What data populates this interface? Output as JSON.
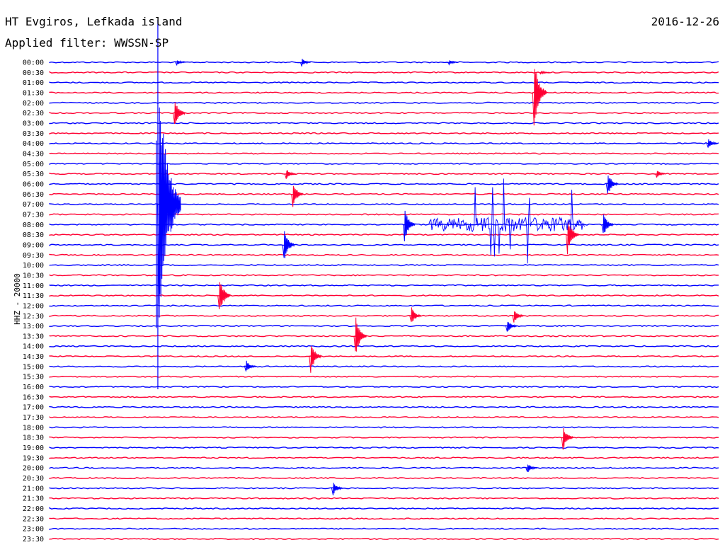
{
  "header": {
    "station": "HT Evgiros, Lefkada island",
    "date": "2016-12-26",
    "filter": "Applied filter: WWSSN-SP",
    "channel": "HHZ - 20000"
  },
  "colors": {
    "even_trace": "#0000ff",
    "odd_trace": "#ff0033",
    "background": "#ffffff"
  },
  "chart_data": {
    "type": "line",
    "title": "HT Evgiros, Lefkada island",
    "subtitle": "Applied filter: WWSSN-SP",
    "ylabel": "HHZ - 20000",
    "date": "2016-12-26",
    "x_range_minutes": [
      0,
      30
    ],
    "rows": [
      "00:00",
      "00:30",
      "01:00",
      "01:30",
      "02:00",
      "02:30",
      "03:00",
      "03:30",
      "04:00",
      "04:30",
      "05:00",
      "05:30",
      "06:00",
      "06:30",
      "07:00",
      "07:30",
      "08:00",
      "08:30",
      "09:00",
      "09:30",
      "10:00",
      "10:30",
      "11:00",
      "11:30",
      "12:00",
      "12:30",
      "13:00",
      "13:30",
      "14:00",
      "14:30",
      "15:00",
      "15:30",
      "16:00",
      "16:30",
      "17:00",
      "17:30",
      "18:00",
      "18:30",
      "19:00",
      "19:30",
      "20:00",
      "20:30",
      "21:00",
      "21:30",
      "22:00",
      "22:30",
      "23:00",
      "23:30"
    ],
    "events": [
      {
        "row": "00:00",
        "minute": 11.3,
        "amplitude": 6
      },
      {
        "row": "00:00",
        "minute": 17.9,
        "amplitude": 4
      },
      {
        "row": "00:00",
        "minute": 5.7,
        "amplitude": 4
      },
      {
        "row": "00:30",
        "minute": 22.0,
        "amplitude": 3
      },
      {
        "row": "01:30",
        "minute": 21.7,
        "amplitude": 50
      },
      {
        "row": "02:30",
        "minute": 5.6,
        "amplitude": 22
      },
      {
        "row": "04:00",
        "minute": 29.5,
        "amplitude": 8
      },
      {
        "row": "05:30",
        "minute": 10.6,
        "amplitude": 8
      },
      {
        "row": "05:30",
        "minute": 27.2,
        "amplitude": 6
      },
      {
        "row": "06:00",
        "minute": 25.0,
        "amplitude": 18
      },
      {
        "row": "06:30",
        "minute": 10.9,
        "amplitude": 20
      },
      {
        "row": "07:00",
        "minute": 4.9,
        "amplitude": 180
      },
      {
        "row": "08:00",
        "minute": 15.9,
        "amplitude": 25
      },
      {
        "row": "08:00",
        "minute": 24.8,
        "amplitude": 18
      },
      {
        "row": "08:30",
        "minute": 23.2,
        "amplitude": 28
      },
      {
        "row": "09:00",
        "minute": 10.5,
        "amplitude": 25
      },
      {
        "row": "11:30",
        "minute": 7.6,
        "amplitude": 30
      },
      {
        "row": "12:30",
        "minute": 16.2,
        "amplitude": 14
      },
      {
        "row": "12:30",
        "minute": 20.8,
        "amplitude": 10
      },
      {
        "row": "13:00",
        "minute": 20.5,
        "amplitude": 10
      },
      {
        "row": "13:30",
        "minute": 13.7,
        "amplitude": 30
      },
      {
        "row": "14:30",
        "minute": 11.7,
        "amplitude": 24
      },
      {
        "row": "15:00",
        "minute": 8.8,
        "amplitude": 10
      },
      {
        "row": "18:30",
        "minute": 23.0,
        "amplitude": 18
      },
      {
        "row": "20:00",
        "minute": 21.4,
        "amplitude": 8
      },
      {
        "row": "21:00",
        "minute": 12.7,
        "amplitude": 10
      }
    ],
    "tremor_burst": {
      "row": "08:00",
      "start_minute": 17.0,
      "end_minute": 24.0,
      "amplitude": 60
    }
  }
}
